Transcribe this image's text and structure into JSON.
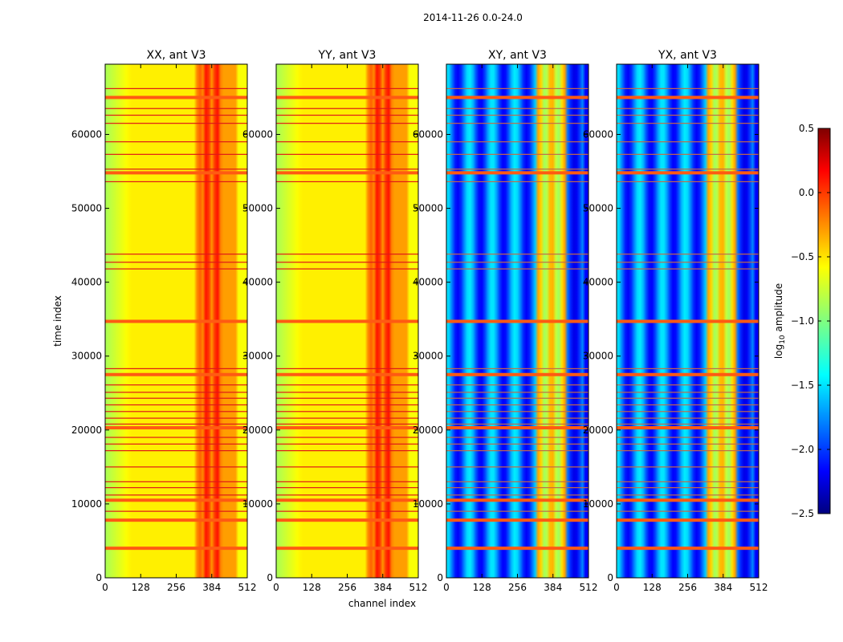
{
  "chart_data": {
    "type": "heatmap",
    "suptitle": "2014-11-26 0.0-24.0",
    "xlabel": "channel index",
    "ylabel": "time index",
    "xlim": [
      0,
      512
    ],
    "ylim": [
      0,
      69500
    ],
    "xticks": [
      "0",
      "128",
      "256",
      "384",
      "512"
    ],
    "xtick_values": [
      0,
      128,
      256,
      384,
      512
    ],
    "yticks": [
      "0",
      "10000",
      "20000",
      "30000",
      "40000",
      "50000",
      "60000"
    ],
    "ytick_values": [
      0,
      10000,
      20000,
      30000,
      40000,
      50000,
      60000
    ],
    "colorbar": {
      "label_main": "log",
      "label_sub": "10",
      "label_rest": " amplitude",
      "range": [
        -2.5,
        0.5
      ],
      "ticks": [
        "0.5",
        "0.0",
        "−0.5",
        "−1.0",
        "−1.5",
        "−2.0",
        "−2.5"
      ],
      "tick_values": [
        0.5,
        0.0,
        -0.5,
        -1.0,
        -1.5,
        -2.0,
        -2.5
      ]
    },
    "panels": [
      {
        "name": "xx",
        "title": "XX, ant V3",
        "mode": "auto"
      },
      {
        "name": "yy",
        "title": "YY, ant V3",
        "mode": "auto"
      },
      {
        "name": "xy",
        "title": "XY, ant V3",
        "mode": "cross"
      },
      {
        "name": "yx",
        "title": "YX, ant V3",
        "mode": "cross"
      }
    ],
    "flag_lines_major": [
      4000,
      7800,
      10500,
      20300,
      27500,
      34700,
      54800,
      65000
    ],
    "flag_lines_minor": [
      9000,
      11200,
      12200,
      13000,
      15000,
      17200,
      18100,
      19000,
      20800,
      21600,
      22500,
      23400,
      24300,
      25100,
      26100,
      28300,
      41800,
      42700,
      43800,
      53600,
      55300,
      57300,
      59000,
      61500,
      62600,
      63500,
      66200
    ]
  }
}
